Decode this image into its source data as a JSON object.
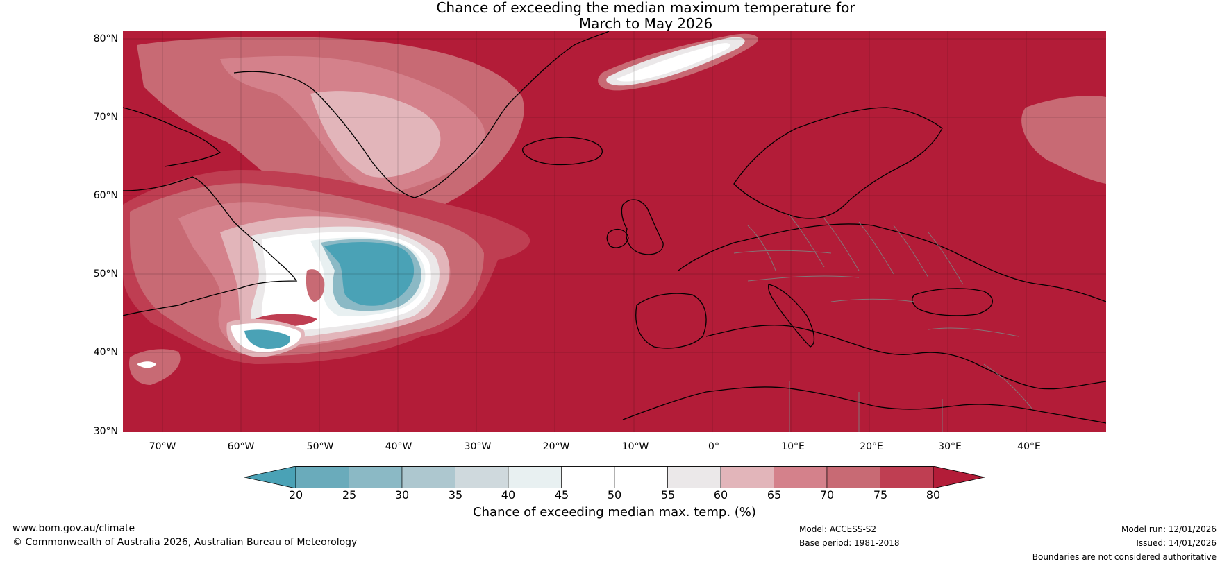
{
  "title": {
    "line1": "Chance of exceeding the median maximum temperature for",
    "line2": "March to May 2026"
  },
  "lat_ticks": [
    "80°N",
    "70°N",
    "60°N",
    "50°N",
    "40°N",
    "30°N"
  ],
  "lon_ticks": [
    "70°W",
    "60°W",
    "50°W",
    "40°W",
    "30°W",
    "20°W",
    "10°W",
    "0°",
    "10°E",
    "20°E",
    "30°E",
    "40°E"
  ],
  "colorbar": {
    "ticks": [
      "20",
      "25",
      "30",
      "35",
      "40",
      "45",
      "50",
      "55",
      "60",
      "65",
      "70",
      "75",
      "80"
    ],
    "under_color": "#4aa2b6",
    "over_color": "#b31c38",
    "colors": [
      "#6aabbb",
      "#8bb9c5",
      "#adc7cf",
      "#cfd9dd",
      "#e8f0f1",
      "#ffffff",
      "#ffffff",
      "#ebe8e9",
      "#e2b5ba",
      "#d4818b",
      "#c86a74",
      "#bf3e52"
    ],
    "label": "Chance of exceeding median max. temp. (%)"
  },
  "map_colors": {
    "background": "#b31c38",
    "land_line": "#000000",
    "border_line": "#808080"
  },
  "footer": {
    "website": "www.bom.gov.au/climate",
    "copyright": "© Commonwealth of Australia 2026, Australian Bureau of Meteorology",
    "model": "Model: ACCESS-S2",
    "base_period": "Base period: 1981-2018",
    "model_run": "Model run: 12/01/2026",
    "issued": "Issued: 14/01/2026",
    "disclaimer": "Boundaries are not considered authoritative"
  }
}
